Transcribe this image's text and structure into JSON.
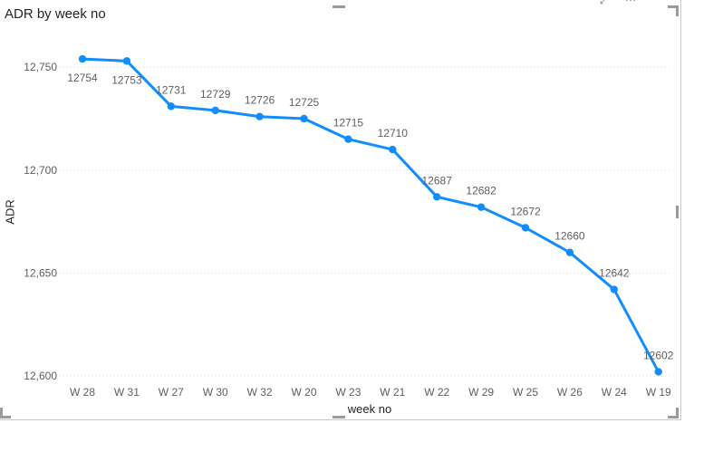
{
  "visual": {
    "title": "ADR by week no",
    "xlabel": "week no",
    "ylabel": "ADR"
  },
  "chart_data": {
    "type": "line",
    "title": "ADR by week no",
    "xlabel": "week no",
    "ylabel": "ADR",
    "categories": [
      "W 28",
      "W 31",
      "W 27",
      "W 30",
      "W 32",
      "W 20",
      "W 23",
      "W 21",
      "W 22",
      "W 29",
      "W 25",
      "W 26",
      "W 24",
      "W 19"
    ],
    "series": [
      {
        "values": [
          12754,
          12753,
          12731,
          12729,
          12726,
          12725,
          12715,
          12710,
          12687,
          12682,
          12672,
          12660,
          12642,
          12602
        ]
      }
    ],
    "data_labels": [
      "12754",
      "12753",
      "12731",
      "12729",
      "12726",
      "12725",
      "12715",
      "12710",
      "12687",
      "12682",
      "12672",
      "12660",
      "12642",
      "12602"
    ],
    "y_ticks": [
      12600,
      12650,
      12700,
      12750
    ],
    "y_tick_labels": [
      "12,600",
      "12,650",
      "12,700",
      "12,750"
    ],
    "ylim": [
      12600,
      12758
    ],
    "grid": "horizontal-dotted",
    "line_color": "#118DFF",
    "gridline_color": "#d9d9d9",
    "text_color": "#605E5C"
  }
}
